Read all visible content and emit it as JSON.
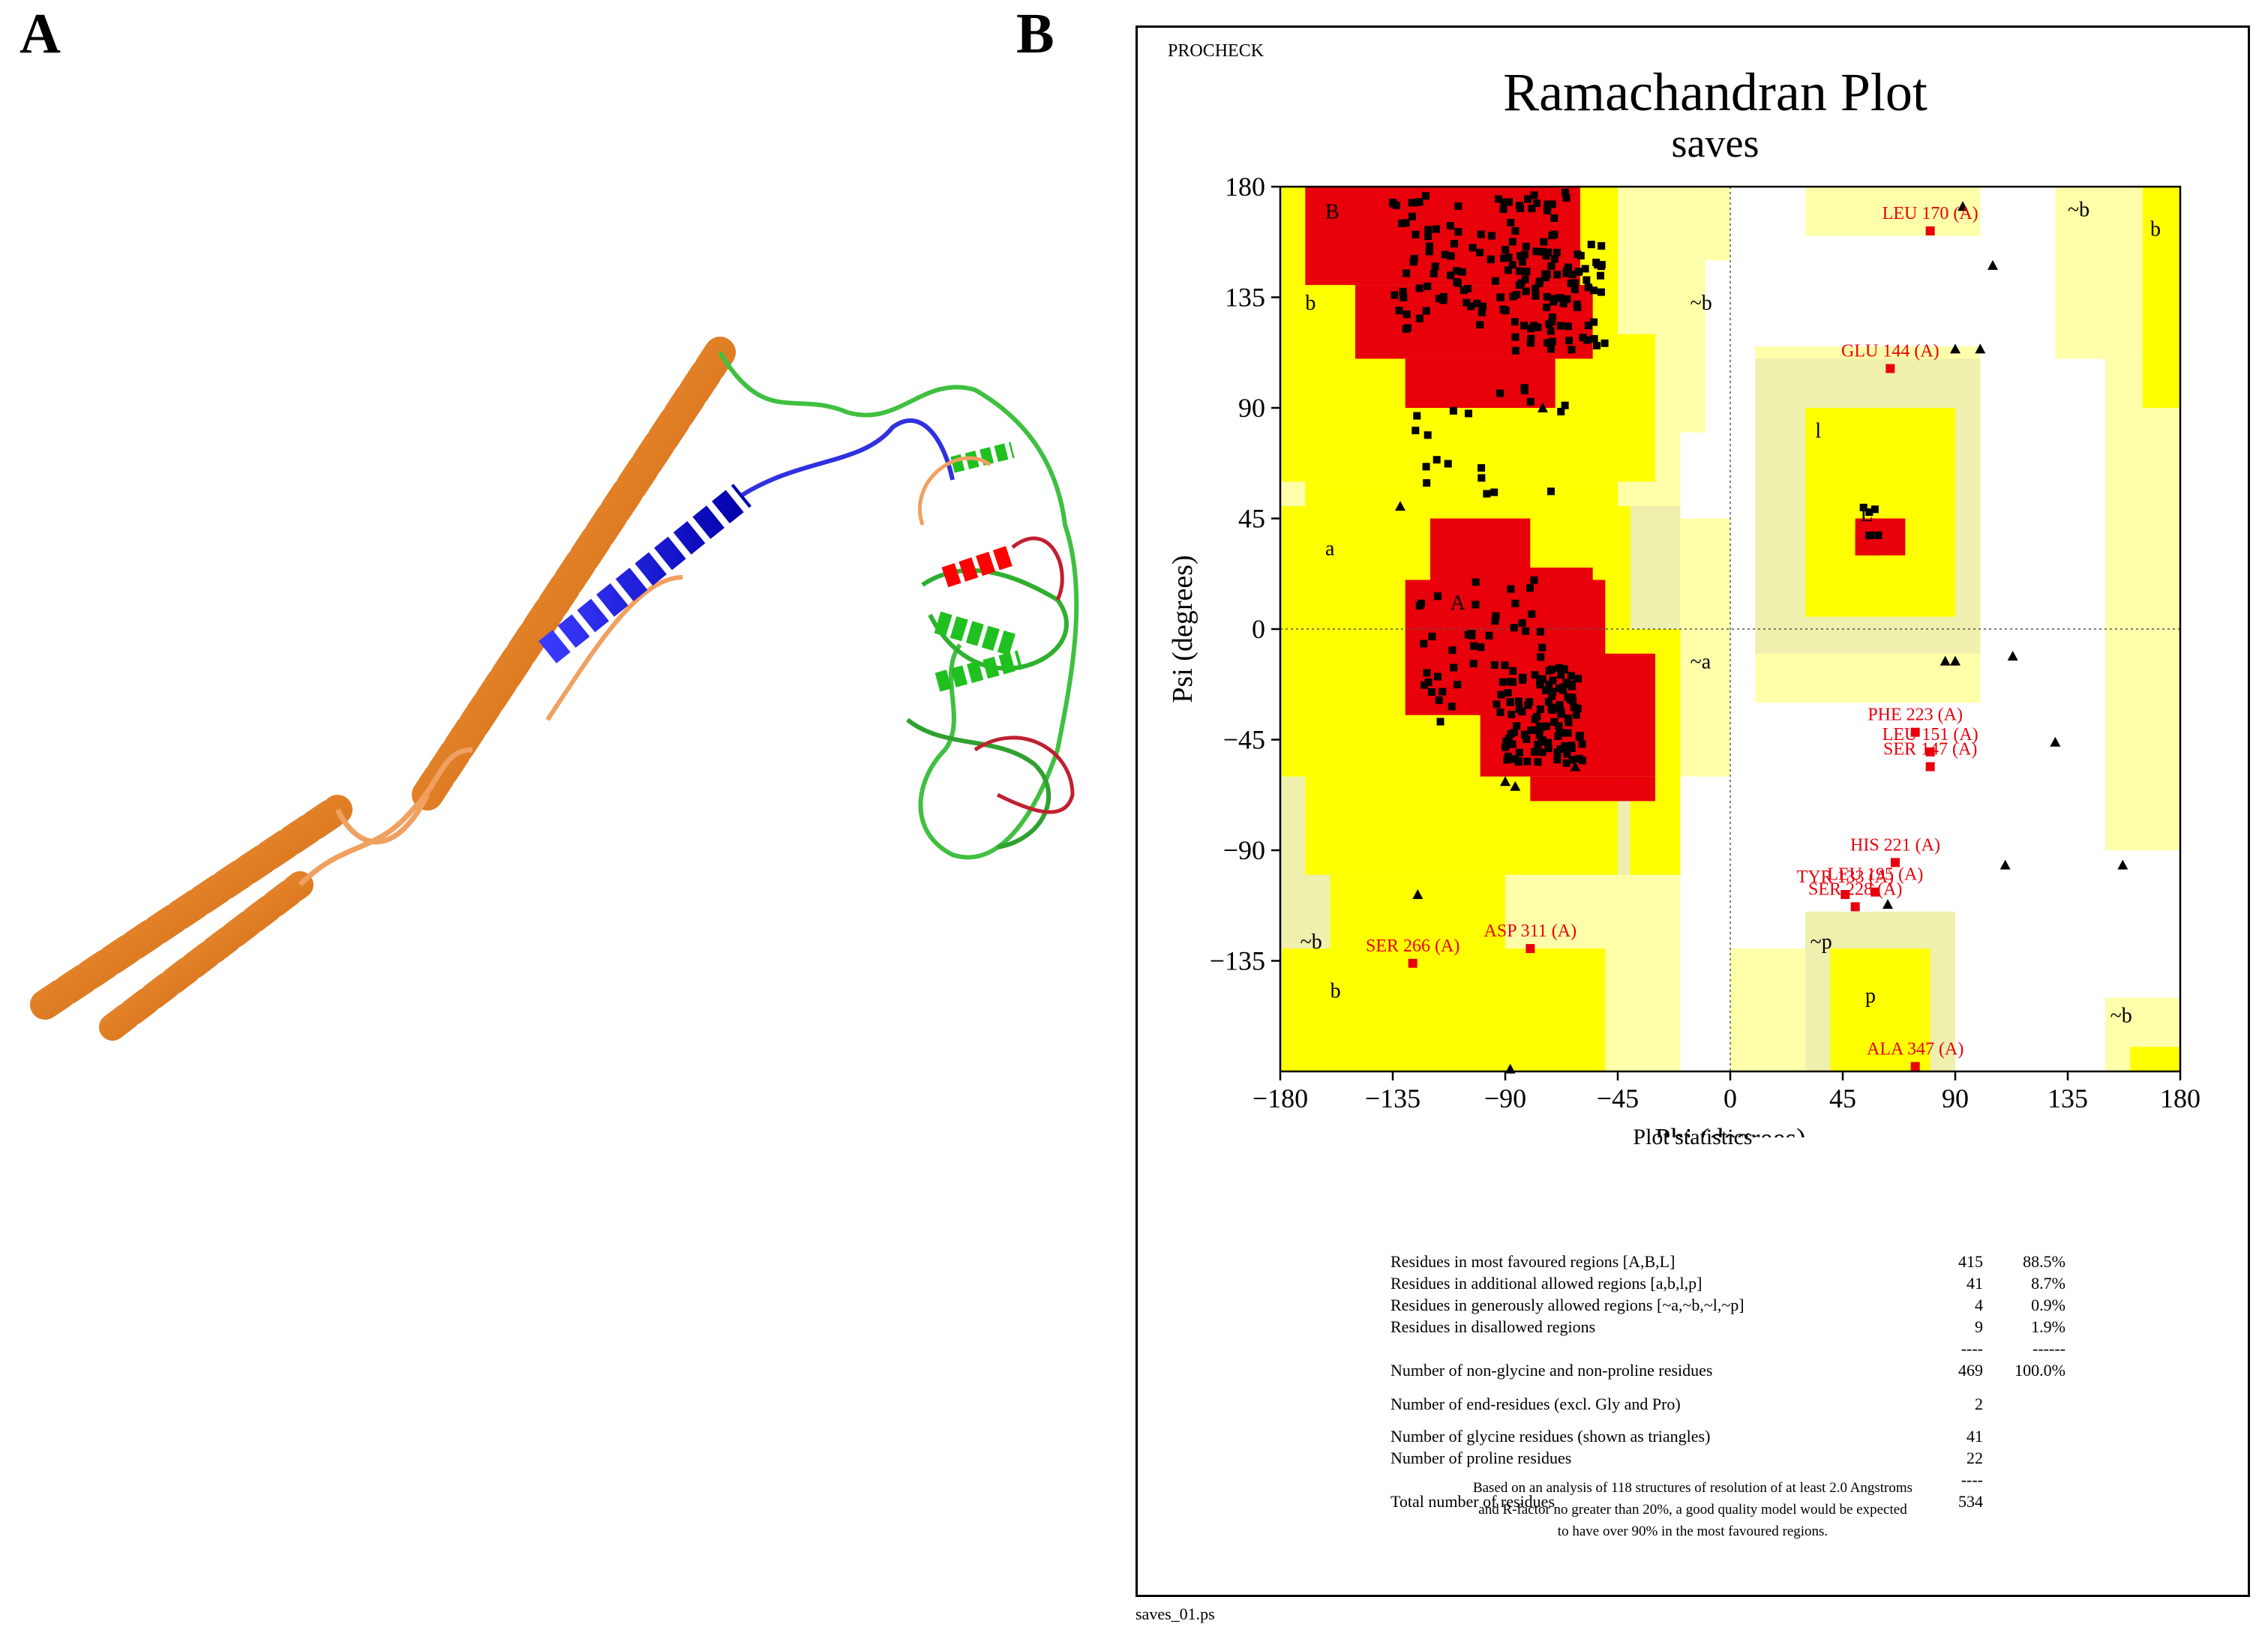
{
  "panels": {
    "a_letter": "A",
    "b_letter": "B"
  },
  "chart_data": {
    "type": "scatter",
    "header": "PROCHECK",
    "title": "Ramachandran Plot",
    "subtitle": "saves",
    "xlabel": "Phi (degrees)",
    "ylabel": "Psi (degrees)",
    "xlim": [
      -180,
      180
    ],
    "ylim": [
      -180,
      180
    ],
    "xticks": [
      -180,
      -135,
      -90,
      -45,
      0,
      45,
      90,
      135,
      180
    ],
    "yticks": [
      180,
      135,
      90,
      45,
      0,
      -45,
      -90,
      -135
    ],
    "tick_labels_x": [
      "−180",
      "−135",
      "−90",
      "−45",
      "0",
      "45",
      "90",
      "135",
      "180"
    ],
    "tick_labels_y": [
      "180",
      "135",
      "90",
      "45",
      "0",
      "−45",
      "−90",
      "−135"
    ],
    "colors": {
      "core": "#e8000b",
      "allowed": "#ffff00",
      "generous": "#ffffaa",
      "generous_dark": "#efefae",
      "point": "#000000",
      "outlier": "#e8000b"
    },
    "region_labels": [
      {
        "text": "B",
        "x": -162,
        "y": 167
      },
      {
        "text": "b",
        "x": -170,
        "y": 130
      },
      {
        "text": "~b",
        "x": -16,
        "y": 130
      },
      {
        "text": "a",
        "x": -162,
        "y": 30
      },
      {
        "text": "A",
        "x": -112,
        "y": 8
      },
      {
        "text": "~a",
        "x": -16,
        "y": -16
      },
      {
        "text": "l",
        "x": 34,
        "y": 78
      },
      {
        "text": "L",
        "x": 52,
        "y": 44
      },
      {
        "text": "~b",
        "x": -172,
        "y": -130
      },
      {
        "text": "b",
        "x": -160,
        "y": -150
      },
      {
        "text": "~p",
        "x": 32,
        "y": -130
      },
      {
        "text": "p",
        "x": 54,
        "y": -152
      },
      {
        "text": "~b",
        "x": 135,
        "y": 168
      },
      {
        "text": "b",
        "x": 168,
        "y": 160
      },
      {
        "text": "~b",
        "x": 152,
        "y": -160
      }
    ],
    "labelled_residues": [
      {
        "label": "LEU 170 (A)",
        "x": 80,
        "y": 162
      },
      {
        "label": "GLU 144 (A)",
        "x": 64,
        "y": 106
      },
      {
        "label": "PHE 223 (A)",
        "x": 74,
        "y": -42
      },
      {
        "label": "LEU 151 (A)",
        "x": 80,
        "y": -50
      },
      {
        "label": "SER 147 (A)",
        "x": 80,
        "y": -56
      },
      {
        "label": "HIS 221 (A)",
        "x": 66,
        "y": -95
      },
      {
        "label": "TYR 133 (A)",
        "x": 46,
        "y": -108
      },
      {
        "label": "LEU 195 (A)",
        "x": 58,
        "y": -107
      },
      {
        "label": "SER 228 (A)",
        "x": 50,
        "y": -113
      },
      {
        "label": "SER 266 (A)",
        "x": -127,
        "y": -136
      },
      {
        "label": "ASP 311 (A)",
        "x": -80,
        "y": -130
      },
      {
        "label": "ALA 347 (A)",
        "x": 74,
        "y": -178
      }
    ],
    "glycine_points": [
      [
        -75,
        90
      ],
      [
        -132,
        50
      ],
      [
        -125,
        -108
      ],
      [
        -88,
        -179
      ],
      [
        -62,
        -56
      ],
      [
        -86,
        -64
      ],
      [
        -90,
        -62
      ],
      [
        93,
        172
      ],
      [
        105,
        148
      ],
      [
        100,
        114
      ],
      [
        90,
        114
      ],
      [
        90,
        -13
      ],
      [
        113,
        -11
      ],
      [
        130,
        -46
      ],
      [
        110,
        -96
      ],
      [
        157,
        -96
      ],
      [
        63,
        -112
      ],
      [
        86,
        -13
      ]
    ]
  },
  "stats": {
    "title": "Plot statistics",
    "rows": [
      {
        "label": "Residues in most favoured regions  [A,B,L]",
        "count": "415",
        "pct": "88.5%"
      },
      {
        "label": "Residues in additional allowed regions  [a,b,l,p]",
        "count": "41",
        "pct": "8.7%"
      },
      {
        "label": "Residues in generously allowed regions  [~a,~b,~l,~p]",
        "count": "4",
        "pct": "0.9%"
      },
      {
        "label": "Residues in disallowed regions",
        "count": "9",
        "pct": "1.9%"
      },
      {
        "label": "",
        "count": "----",
        "pct": "------"
      },
      {
        "label": "Number of non-glycine and non-proline residues",
        "count": "469",
        "pct": "100.0%"
      },
      {
        "label": "Number of end-residues (excl. Gly and Pro)",
        "count": "2",
        "pct": ""
      },
      {
        "label": "Number of glycine residues (shown as triangles)",
        "count": "41",
        "pct": ""
      },
      {
        "label": "Number of proline residues",
        "count": "22",
        "pct": ""
      },
      {
        "label": "",
        "count": "----",
        "pct": ""
      },
      {
        "label": "Total number of residues",
        "count": "534",
        "pct": ""
      }
    ],
    "note_lines": [
      "Based on an analysis of 118 structures of resolution of at least 2.0 Angstroms",
      "and R-factor no greater than 20%, a good quality model would be expected",
      "to have over 90% in the most favoured regions."
    ]
  },
  "filename": "saves_01.ps"
}
